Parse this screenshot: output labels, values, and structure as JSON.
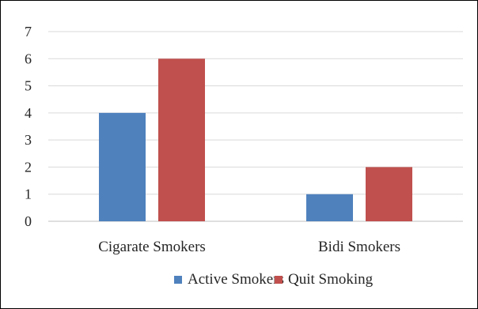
{
  "chart_data": {
    "type": "bar",
    "categories": [
      "Cigarate Smokers",
      "Bidi Smokers"
    ],
    "series": [
      {
        "name": "Active Smokers",
        "values": [
          4,
          1
        ],
        "color": "#4F81BD"
      },
      {
        "name": "Quit Smoking",
        "values": [
          6,
          2
        ],
        "color": "#C0504D"
      }
    ],
    "title": "",
    "xlabel": "",
    "ylabel": "",
    "ylim": [
      0,
      7
    ],
    "yticks": [
      "0",
      "1",
      "2",
      "3",
      "4",
      "5",
      "6",
      "7"
    ],
    "grid": true,
    "legend_position": "bottom"
  }
}
